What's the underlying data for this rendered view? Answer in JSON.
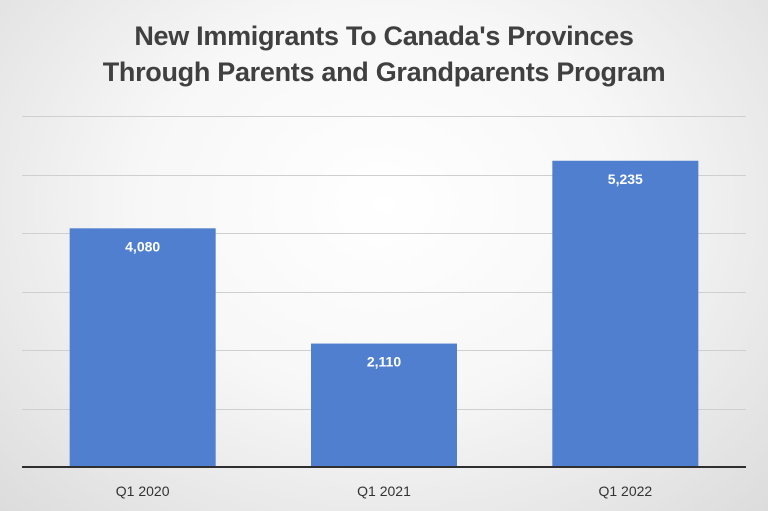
{
  "chart_data": {
    "type": "bar",
    "title_lines": [
      "New Immigrants To Canada's Provinces",
      "Through Parents and Grandparents Program"
    ],
    "categories": [
      "Q1 2020",
      "Q1 2021",
      "Q1 2022"
    ],
    "values": [
      4080,
      2110,
      5235
    ],
    "data_labels": [
      "4,080",
      "2,110",
      "5,235"
    ],
    "ylim": [
      0,
      6000
    ],
    "gridline_step": 1000,
    "grid": true,
    "xlabel": "",
    "ylabel": "",
    "bar_color": "#4f7fce"
  }
}
